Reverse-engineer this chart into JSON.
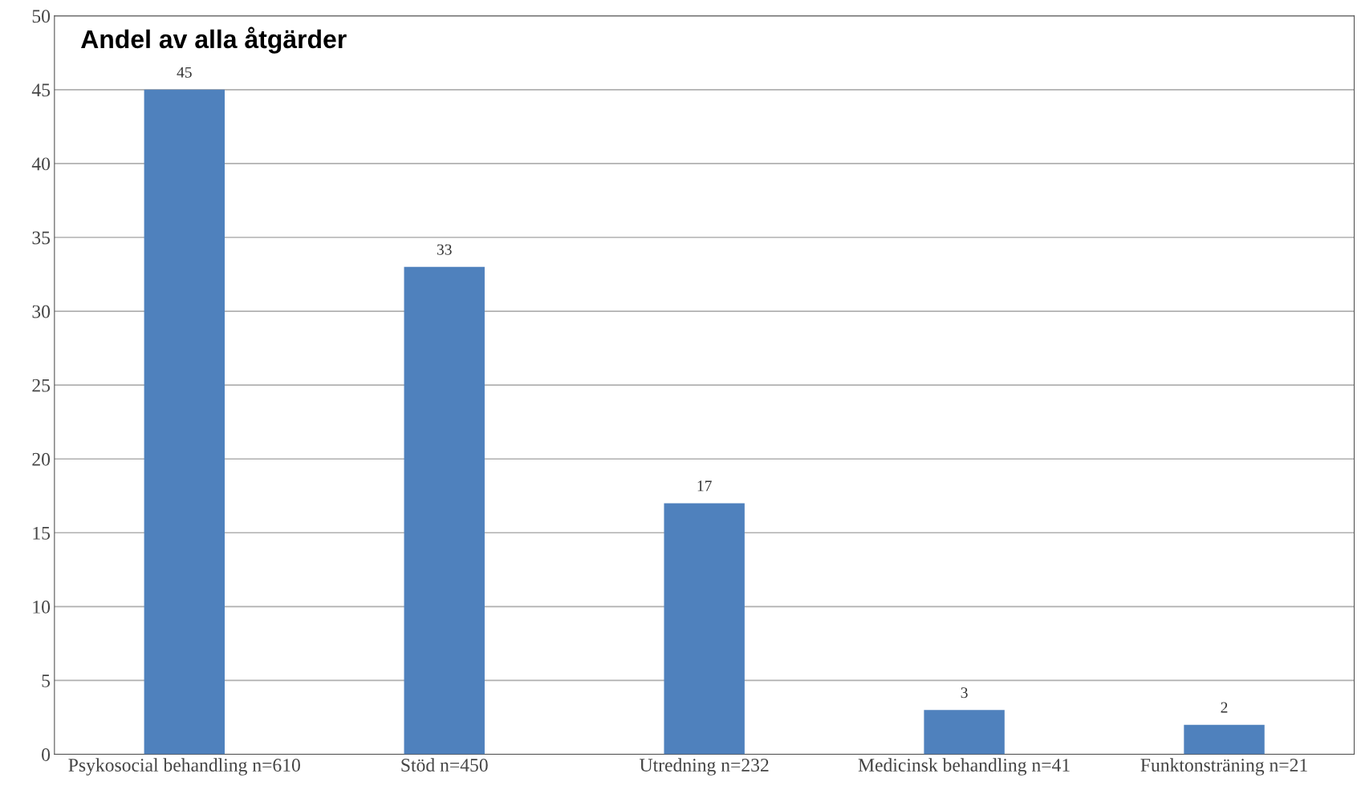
{
  "chart_data": {
    "type": "bar",
    "title": "Andel av alla åtgärder",
    "categories": [
      "Psykosocial behandling n=610",
      "Stöd n=450",
      "Utredning n=232",
      "Medicinsk behandling n=41",
      "Funktonsträning n=21"
    ],
    "values": [
      45,
      33,
      17,
      3,
      2
    ],
    "color": "#4f81bd",
    "ylim": [
      0,
      50
    ],
    "yticks": [
      0,
      5,
      10,
      15,
      20,
      25,
      30,
      35,
      40,
      45,
      50
    ],
    "grid": "y",
    "data_labels": true
  }
}
